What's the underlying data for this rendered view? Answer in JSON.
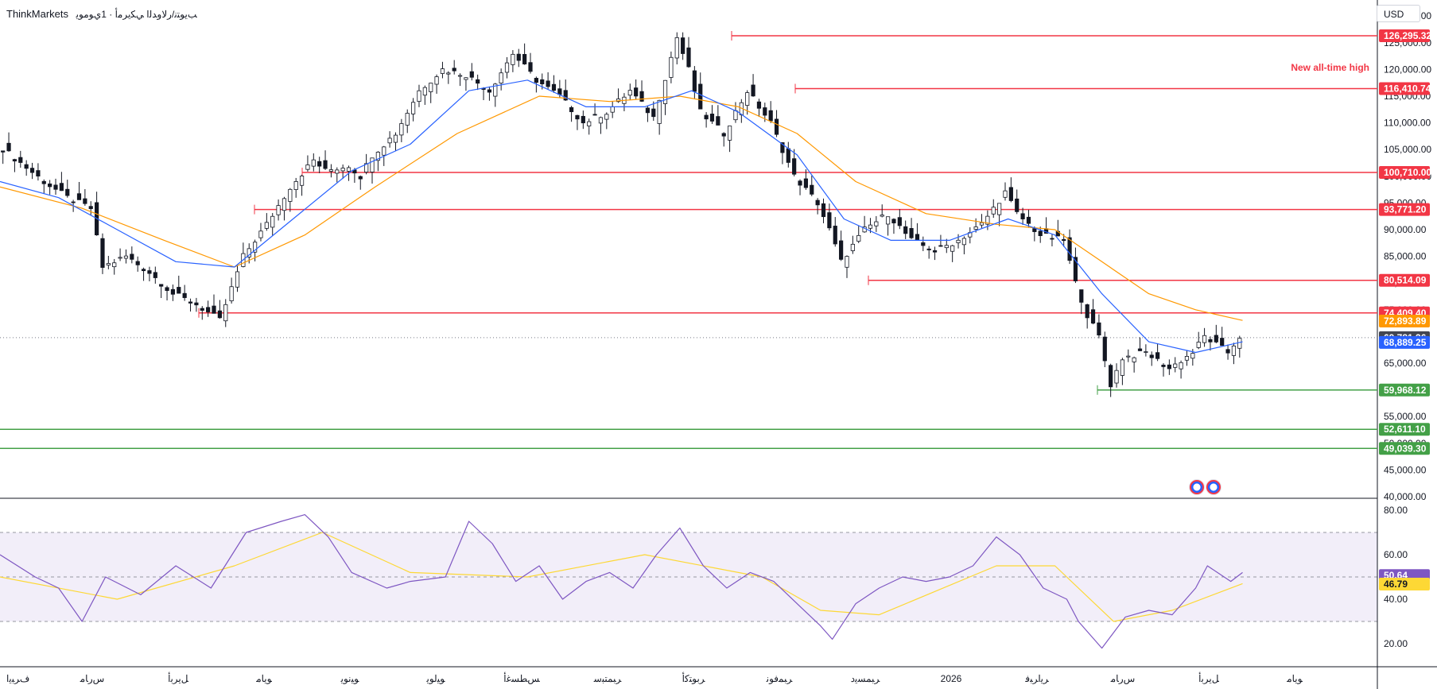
{
  "header": {
    "broker": "ThinkMarkets",
    "instrument": "ﺐﻳﻮﺘﻧ/ﺭﻻﻭﺪﻟﺍ ﻲﻜﻳﺮﻣﺃ · 1ﻱﻮﻣﻮﻳ"
  },
  "currency": "USD",
  "price_axis": {
    "ticks": [
      "130,000.00",
      "125,000.00",
      "120,000.00",
      "115,000.00",
      "110,000.00",
      "105,000.00",
      "100,000.00",
      "95,000.00",
      "90,000.00",
      "85,000.00",
      "80,000.00",
      "75,000.00",
      "70,000.00",
      "65,000.00",
      "60,000.00",
      "55,000.00",
      "50,000.00",
      "45,000.00",
      "40,000.00"
    ]
  },
  "rsi_axis": {
    "ticks": [
      "80.00",
      "60.00",
      "40.00",
      "20.00"
    ]
  },
  "time_axis": {
    "labels": [
      "ﻑﺮﺒﻳﺍ",
      "ﺱﺭﺎﻣ",
      "ﻞﻳﺮﺑﺃ",
      "ﻮﻳﺎﻣ",
      "ﻮﻴﻧﻮﻳ",
      "ﻮﻴﻟﻮﻳ",
      "ﺲﻄﺴﻏﺃ",
      "ﺮﺒﻤﺘﺒﺳ",
      "ﺮﺑﻮﺘﻛﺃ",
      "ﺮﺒﻤﻓﻮﻧ",
      "ﺮﺒﻤﺴﻳﺩ",
      "2026",
      "ﺮﻳﺍﺮﺒﻓ",
      "ﺱﺭﺎﻣ",
      "ﻞﻳﺮﺑﺃ",
      "ﻮﻳﺎﻣ"
    ]
  },
  "annotations": {
    "ath_note": "New all-time high"
  },
  "levels": [
    {
      "label": "126,295.32",
      "value": 126295.32,
      "color": "#f23645",
      "line_color": "#f23645"
    },
    {
      "label": "116,410.74",
      "value": 116410.74,
      "color": "#f23645",
      "line_color": "#f23645"
    },
    {
      "label": "100,710.00",
      "value": 100710.0,
      "color": "#f23645",
      "line_color": "#f23645"
    },
    {
      "label": "93,771.20",
      "value": 93771.2,
      "color": "#f23645",
      "line_color": "#f23645"
    },
    {
      "label": "80,514.09",
      "value": 80514.09,
      "color": "#f23645",
      "line_color": "#f23645"
    },
    {
      "label": "74,409.40",
      "value": 74409.4,
      "color": "#f23645",
      "line_color": "#f23645"
    },
    {
      "label": "59,968.12",
      "value": 59968.12,
      "color": "#43a047",
      "line_color": "#43a047"
    },
    {
      "label": "52,611.10",
      "value": 52611.1,
      "color": "#43a047",
      "line_color": "#43a047"
    },
    {
      "label": "49,039.30",
      "value": 49039.3,
      "color": "#43a047",
      "line_color": "#43a047"
    }
  ],
  "price_tags": [
    {
      "label": "72,893.89",
      "value": 72893.89,
      "color": "#ff9800"
    },
    {
      "label": "69,781.36",
      "value": 69781.36,
      "color": "#434651"
    },
    {
      "label": "68,889.25",
      "value": 68889.25,
      "color": "#2962ff"
    }
  ],
  "rsi_tags": [
    {
      "label": "50.64",
      "value": 50.64,
      "color": "#7e57c2"
    },
    {
      "label": "46.79",
      "value": 46.79,
      "color": "#fdd835"
    }
  ],
  "chart_data": {
    "type": "line",
    "ylim": [
      40000,
      133000
    ],
    "price_path": [
      [
        0,
        106000
      ],
      [
        8,
        99000
      ],
      [
        12,
        96000
      ],
      [
        16,
        94000
      ],
      [
        18,
        83000
      ],
      [
        22,
        85000
      ],
      [
        26,
        82000
      ],
      [
        30,
        78000
      ],
      [
        34,
        76000
      ],
      [
        38,
        73000
      ],
      [
        42,
        85000
      ],
      [
        46,
        91000
      ],
      [
        50,
        98000
      ],
      [
        54,
        103000
      ],
      [
        56,
        101000
      ],
      [
        60,
        102000
      ],
      [
        62,
        100000
      ],
      [
        64,
        104000
      ],
      [
        68,
        108000
      ],
      [
        72,
        116000
      ],
      [
        76,
        120000
      ],
      [
        80,
        119000
      ],
      [
        84,
        116000
      ],
      [
        88,
        123000
      ],
      [
        92,
        118000
      ],
      [
        96,
        115000
      ],
      [
        100,
        110000
      ],
      [
        104,
        112000
      ],
      [
        108,
        116000
      ],
      [
        112,
        111000
      ],
      [
        116,
        126000
      ],
      [
        118,
        120000
      ],
      [
        120,
        112000
      ],
      [
        124,
        108000
      ],
      [
        128,
        116000
      ],
      [
        132,
        110000
      ],
      [
        136,
        100000
      ],
      [
        140,
        95000
      ],
      [
        142,
        90000
      ],
      [
        144,
        84000
      ],
      [
        148,
        90000
      ],
      [
        152,
        93000
      ],
      [
        156,
        88000
      ],
      [
        160,
        86000
      ],
      [
        164,
        88000
      ],
      [
        168,
        91000
      ],
      [
        172,
        97000
      ],
      [
        174,
        93000
      ],
      [
        178,
        89000
      ],
      [
        182,
        88000
      ],
      [
        184,
        80000
      ],
      [
        186,
        74000
      ],
      [
        188,
        70000
      ],
      [
        190,
        61000
      ],
      [
        192,
        66000
      ],
      [
        196,
        67000
      ],
      [
        200,
        64000
      ],
      [
        204,
        67000
      ],
      [
        206,
        70000
      ],
      [
        210,
        67000
      ],
      [
        212,
        70000
      ]
    ],
    "ema20": [
      [
        0,
        99000
      ],
      [
        10,
        96000
      ],
      [
        20,
        90000
      ],
      [
        30,
        84000
      ],
      [
        40,
        83000
      ],
      [
        50,
        92000
      ],
      [
        60,
        101000
      ],
      [
        70,
        106000
      ],
      [
        80,
        116000
      ],
      [
        90,
        118000
      ],
      [
        100,
        113000
      ],
      [
        110,
        113000
      ],
      [
        118,
        116000
      ],
      [
        126,
        112000
      ],
      [
        136,
        104000
      ],
      [
        144,
        92000
      ],
      [
        152,
        88000
      ],
      [
        162,
        88000
      ],
      [
        172,
        92000
      ],
      [
        180,
        89000
      ],
      [
        188,
        78000
      ],
      [
        196,
        69000
      ],
      [
        204,
        67000
      ],
      [
        212,
        69000
      ]
    ],
    "ema50": [
      [
        0,
        98000
      ],
      [
        14,
        94000
      ],
      [
        28,
        88000
      ],
      [
        40,
        83000
      ],
      [
        52,
        89000
      ],
      [
        64,
        98000
      ],
      [
        78,
        108000
      ],
      [
        92,
        115000
      ],
      [
        104,
        114000
      ],
      [
        116,
        115000
      ],
      [
        126,
        113000
      ],
      [
        136,
        108000
      ],
      [
        146,
        99000
      ],
      [
        158,
        93000
      ],
      [
        170,
        91000
      ],
      [
        180,
        90000
      ],
      [
        188,
        84000
      ],
      [
        196,
        78000
      ],
      [
        204,
        75000
      ],
      [
        212,
        73000
      ]
    ],
    "rsi_path": [
      [
        0,
        60
      ],
      [
        6,
        50
      ],
      [
        10,
        45
      ],
      [
        14,
        30
      ],
      [
        18,
        50
      ],
      [
        24,
        42
      ],
      [
        30,
        55
      ],
      [
        36,
        45
      ],
      [
        42,
        70
      ],
      [
        48,
        75
      ],
      [
        52,
        78
      ],
      [
        56,
        68
      ],
      [
        60,
        52
      ],
      [
        66,
        45
      ],
      [
        70,
        48
      ],
      [
        76,
        50
      ],
      [
        80,
        75
      ],
      [
        84,
        65
      ],
      [
        88,
        48
      ],
      [
        92,
        55
      ],
      [
        96,
        40
      ],
      [
        100,
        48
      ],
      [
        104,
        52
      ],
      [
        108,
        45
      ],
      [
        112,
        60
      ],
      [
        116,
        72
      ],
      [
        120,
        55
      ],
      [
        124,
        45
      ],
      [
        128,
        52
      ],
      [
        132,
        48
      ],
      [
        136,
        38
      ],
      [
        140,
        28
      ],
      [
        142,
        22
      ],
      [
        146,
        38
      ],
      [
        150,
        45
      ],
      [
        154,
        50
      ],
      [
        158,
        48
      ],
      [
        162,
        50
      ],
      [
        166,
        55
      ],
      [
        170,
        68
      ],
      [
        174,
        60
      ],
      [
        178,
        45
      ],
      [
        182,
        40
      ],
      [
        184,
        30
      ],
      [
        188,
        18
      ],
      [
        192,
        32
      ],
      [
        196,
        35
      ],
      [
        200,
        33
      ],
      [
        204,
        45
      ],
      [
        206,
        55
      ],
      [
        210,
        48
      ],
      [
        212,
        52
      ]
    ],
    "rsi_ma": [
      [
        0,
        50
      ],
      [
        20,
        40
      ],
      [
        40,
        55
      ],
      [
        55,
        70
      ],
      [
        70,
        52
      ],
      [
        90,
        50
      ],
      [
        110,
        60
      ],
      [
        130,
        50
      ],
      [
        140,
        35
      ],
      [
        150,
        33
      ],
      [
        170,
        55
      ],
      [
        180,
        55
      ],
      [
        190,
        30
      ],
      [
        200,
        35
      ],
      [
        212,
        47
      ]
    ],
    "rsi_ylim": [
      10,
      85
    ],
    "rsi_bands": [
      70,
      50,
      30
    ],
    "x_max": 235
  }
}
